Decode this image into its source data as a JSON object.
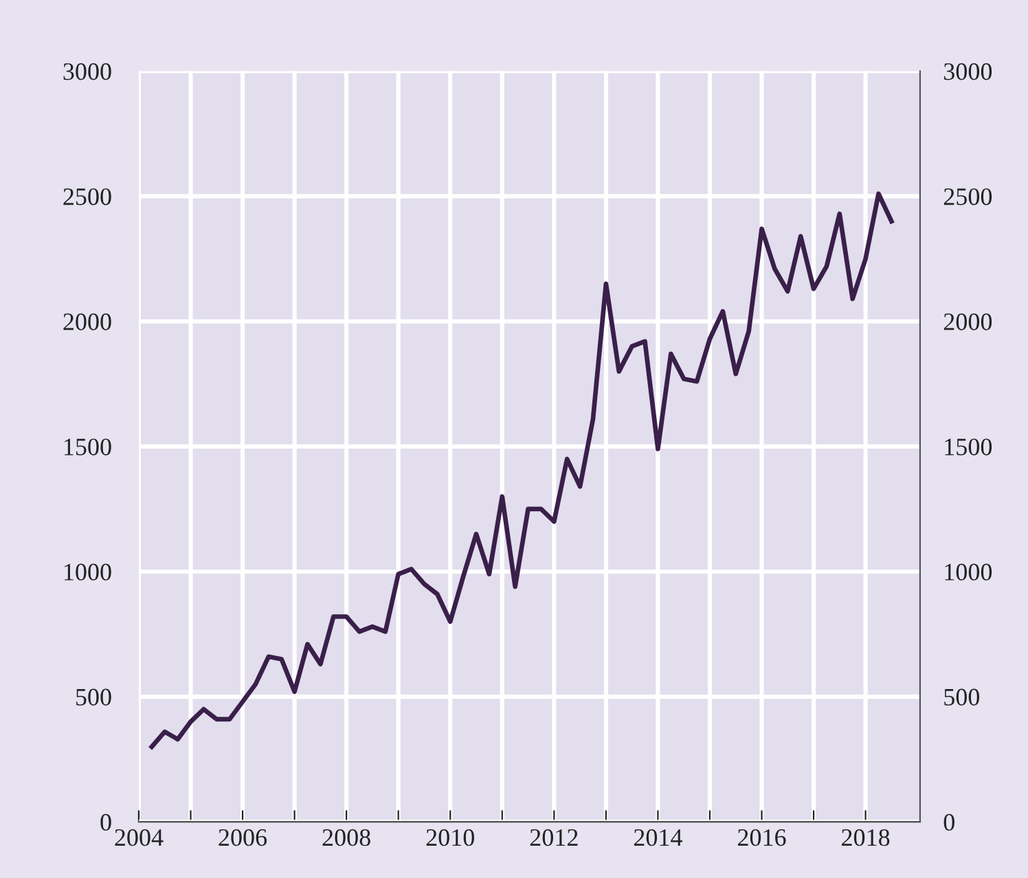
{
  "chart_data": {
    "type": "line",
    "x": [
      2004.25,
      2004.5,
      2004.75,
      2005,
      2005.25,
      2005.5,
      2005.75,
      2006,
      2006.25,
      2006.5,
      2006.75,
      2007,
      2007.25,
      2007.5,
      2007.75,
      2008,
      2008.25,
      2008.5,
      2008.75,
      2009,
      2009.25,
      2009.5,
      2009.75,
      2010,
      2010.25,
      2010.5,
      2010.75,
      2011,
      2011.25,
      2011.5,
      2011.75,
      2012,
      2012.25,
      2012.5,
      2012.75,
      2013,
      2013.25,
      2013.5,
      2013.75,
      2014,
      2014.25,
      2014.5,
      2014.75,
      2015,
      2015.25,
      2015.5,
      2015.75,
      2016,
      2016.25,
      2016.5,
      2016.75,
      2017,
      2017.25,
      2017.5,
      2017.75,
      2018,
      2018.25,
      2018.5
    ],
    "series": [
      {
        "color": "#3a1f4a",
        "values": [
          300,
          360,
          330,
          400,
          450,
          410,
          410,
          480,
          550,
          660,
          650,
          520,
          710,
          630,
          820,
          820,
          760,
          780,
          760,
          990,
          1010,
          950,
          910,
          800,
          980,
          1150,
          990,
          1300,
          940,
          1250,
          1250,
          1200,
          1450,
          1340,
          1610,
          2150,
          1800,
          1900,
          1920,
          1490,
          1870,
          1770,
          1760,
          1930,
          2040,
          1790,
          1960,
          2370,
          2210,
          2120,
          2340,
          2130,
          2220,
          2430,
          2090,
          2250,
          2510,
          2400
        ]
      }
    ],
    "xlim": [
      2004,
      2019.05
    ],
    "xticks": [
      2004,
      {
        "value": 2005,
        "label": null
      },
      2006,
      {
        "value": 2007,
        "label": null
      },
      2008,
      {
        "value": 2009,
        "label": null
      },
      2010,
      {
        "value": 2011,
        "label": null
      },
      2012,
      {
        "value": 2013,
        "label": null
      },
      2014,
      {
        "value": 2015,
        "label": null
      },
      2016,
      {
        "value": 2017,
        "label": null
      },
      2018
    ],
    "ylim": [
      0,
      3000
    ],
    "yticks": [
      0,
      500,
      1000,
      1500,
      2000,
      2500,
      3000
    ],
    "y2lim": [
      0,
      3000
    ],
    "y2ticks": [
      0,
      500,
      1000,
      1500,
      2000,
      2500,
      3000
    ],
    "grid": true,
    "marker": "none",
    "line_style": "solid"
  }
}
